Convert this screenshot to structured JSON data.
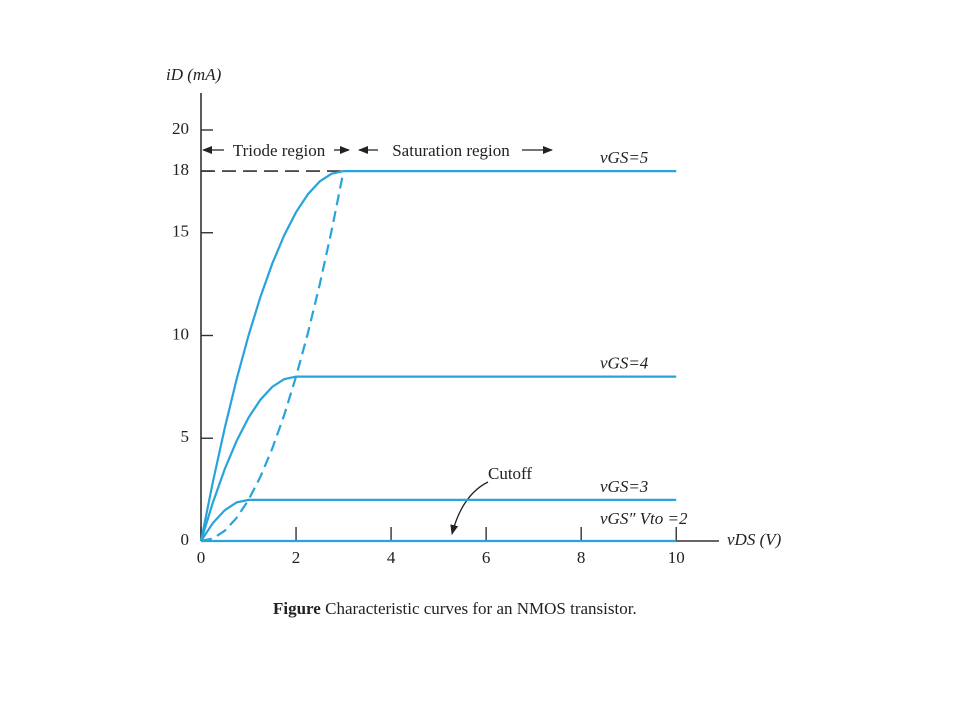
{
  "chart_data": {
    "type": "line",
    "x_label": "vDS (V)",
    "y_label": "iD (mA)",
    "annotations": [
      "Triode region",
      "Saturation region",
      "Cutoff"
    ],
    "x": [
      0,
      0.25,
      0.5,
      0.75,
      1,
      1.25,
      1.5,
      1.75,
      2,
      2.25,
      2.5,
      2.75,
      3,
      10
    ],
    "series": [
      {
        "name": "vGS=5",
        "color": "#29a3dc",
        "values": [
          0,
          2.875,
          5.5,
          7.875,
          10,
          11.875,
          13.5,
          14.875,
          16,
          16.875,
          17.5,
          17.875,
          18,
          18
        ]
      },
      {
        "name": "vGS=4",
        "color": "#29a3dc",
        "values": [
          0,
          1.875,
          3.5,
          4.875,
          6,
          6.875,
          7.5,
          7.875,
          8,
          8,
          8,
          8,
          8,
          8
        ]
      },
      {
        "name": "vGS=3",
        "color": "#29a3dc",
        "values": [
          0,
          0.875,
          1.5,
          1.875,
          2,
          2,
          2,
          2,
          2,
          2,
          2,
          2,
          2,
          2
        ]
      },
      {
        "name": "vGS″ Vto =2",
        "color": "#29a3dc",
        "values": [
          0,
          0,
          0,
          0,
          0,
          0,
          0,
          0,
          0,
          0,
          0,
          0,
          0,
          0
        ]
      },
      {
        "color": "#29a3dc",
        "dashed": true,
        "values": [
          0,
          0.125,
          0.5,
          1.125,
          2,
          3.125,
          4.5,
          6.125,
          8,
          10.125,
          12.5,
          15.125,
          18,
          null
        ]
      }
    ],
    "reference_line": {
      "value": 18,
      "color": "#333333",
      "dashed": true
    },
    "xlim": [
      0,
      10.9
    ],
    "ylim": [
      0,
      21.8
    ],
    "xticks": [
      0,
      2,
      4,
      6,
      8,
      10
    ],
    "yticks": [
      0,
      5,
      10,
      15,
      18,
      20
    ],
    "grid": false
  },
  "caption": {
    "label": "Figure",
    "text": "Characteristic curves for an NMOS transistor."
  }
}
